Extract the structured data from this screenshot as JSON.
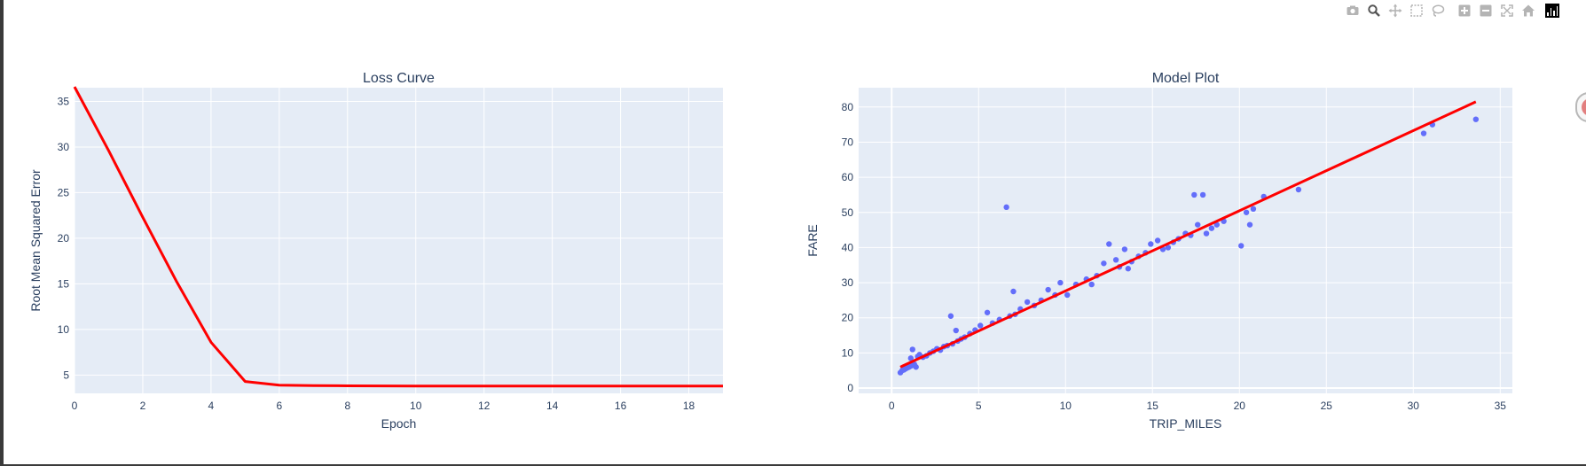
{
  "toolbar": {
    "buttons": [
      "camera-icon",
      "zoom-icon",
      "pan-icon",
      "box-select-icon",
      "lasso-select-icon",
      "zoom-in-icon",
      "zoom-out-icon",
      "autoscale-icon",
      "reset-axes-icon",
      "plotly-logo-icon"
    ]
  },
  "colors": {
    "plot_bg": "#e5ecf6",
    "grid": "#ffffff",
    "text": "#2a3f5f",
    "line": "#ff0000",
    "marker": "#636efa"
  },
  "chart_data": [
    {
      "type": "line",
      "title": "Loss Curve",
      "xlabel": "Epoch",
      "ylabel": "Root Mean Squared Error",
      "xlim": [
        0,
        19
      ],
      "ylim": [
        3,
        36.5
      ],
      "xticks": [
        0,
        2,
        4,
        6,
        8,
        10,
        12,
        14,
        16,
        18
      ],
      "yticks": [
        5,
        10,
        15,
        20,
        25,
        30,
        35
      ],
      "grid": true,
      "series": [
        {
          "x": [
            0,
            1,
            2,
            3,
            4,
            5,
            6,
            7,
            8,
            9,
            10,
            11,
            12,
            13,
            14,
            15,
            16,
            17,
            18,
            19
          ],
          "values": [
            36.6,
            29.6,
            22.3,
            15.2,
            8.6,
            4.3,
            3.9,
            3.85,
            3.83,
            3.82,
            3.81,
            3.8,
            3.8,
            3.8,
            3.8,
            3.8,
            3.8,
            3.8,
            3.8,
            3.8
          ],
          "color": "#ff0000"
        }
      ]
    },
    {
      "type": "scatter",
      "title": "Model Plot",
      "xlabel": "TRIP_MILES",
      "ylabel": "FARE",
      "xlim": [
        -1.9,
        35.7
      ],
      "ylim": [
        -1.5,
        85.5
      ],
      "xticks": [
        0,
        5,
        10,
        15,
        20,
        25,
        30,
        35
      ],
      "yticks": [
        0,
        10,
        20,
        30,
        40,
        50,
        60,
        70,
        80
      ],
      "grid": true,
      "series": [
        {
          "mode": "markers",
          "color": "#636efa",
          "points": [
            [
              0.5,
              4.4
            ],
            [
              0.6,
              5.0
            ],
            [
              0.7,
              5.2
            ],
            [
              0.8,
              5.5
            ],
            [
              0.9,
              5.8
            ],
            [
              1.0,
              6.0
            ],
            [
              1.1,
              6.3
            ],
            [
              1.2,
              6.5
            ],
            [
              1.3,
              6.8
            ],
            [
              1.4,
              6.0
            ],
            [
              1.1,
              8.5
            ],
            [
              1.2,
              11.0
            ],
            [
              1.5,
              9.0
            ],
            [
              1.6,
              9.5
            ],
            [
              1.8,
              8.8
            ],
            [
              2.0,
              9.2
            ],
            [
              2.2,
              10.0
            ],
            [
              2.4,
              10.5
            ],
            [
              2.6,
              11.2
            ],
            [
              2.8,
              10.8
            ],
            [
              3.0,
              11.8
            ],
            [
              3.2,
              12.1
            ],
            [
              3.4,
              20.5
            ],
            [
              3.5,
              12.6
            ],
            [
              3.7,
              16.4
            ],
            [
              3.8,
              13.4
            ],
            [
              4.0,
              14.0
            ],
            [
              4.2,
              14.5
            ],
            [
              4.5,
              15.5
            ],
            [
              4.8,
              16.5
            ],
            [
              5.1,
              17.8
            ],
            [
              5.5,
              21.5
            ],
            [
              5.8,
              18.5
            ],
            [
              6.2,
              19.5
            ],
            [
              6.6,
              51.5
            ],
            [
              6.8,
              20.5
            ],
            [
              7.0,
              27.5
            ],
            [
              7.1,
              21.0
            ],
            [
              7.4,
              22.5
            ],
            [
              7.8,
              24.5
            ],
            [
              8.2,
              23.5
            ],
            [
              8.6,
              25.0
            ],
            [
              9.0,
              28.0
            ],
            [
              9.4,
              26.5
            ],
            [
              9.7,
              30.0
            ],
            [
              10.1,
              26.5
            ],
            [
              10.6,
              29.5
            ],
            [
              11.2,
              31.0
            ],
            [
              11.5,
              29.5
            ],
            [
              11.8,
              32.0
            ],
            [
              12.2,
              35.5
            ],
            [
              12.5,
              41.0
            ],
            [
              12.9,
              36.5
            ],
            [
              13.1,
              34.5
            ],
            [
              13.4,
              39.5
            ],
            [
              13.6,
              34.0
            ],
            [
              13.8,
              36.0
            ],
            [
              14.2,
              37.5
            ],
            [
              14.6,
              38.5
            ],
            [
              14.9,
              41.0
            ],
            [
              15.3,
              42.0
            ],
            [
              15.6,
              39.5
            ],
            [
              15.9,
              40.0
            ],
            [
              16.2,
              41.5
            ],
            [
              16.5,
              42.5
            ],
            [
              16.9,
              44.0
            ],
            [
              17.2,
              43.5
            ],
            [
              17.4,
              55.0
            ],
            [
              17.6,
              46.5
            ],
            [
              17.9,
              55.0
            ],
            [
              18.1,
              44.0
            ],
            [
              18.4,
              45.5
            ],
            [
              18.7,
              46.5
            ],
            [
              19.1,
              47.5
            ],
            [
              20.1,
              40.5
            ],
            [
              20.4,
              50.0
            ],
            [
              20.6,
              46.5
            ],
            [
              20.8,
              51.0
            ],
            [
              21.4,
              54.5
            ],
            [
              23.4,
              56.5
            ],
            [
              30.6,
              72.5
            ],
            [
              31.1,
              75.0
            ],
            [
              33.6,
              76.5
            ]
          ]
        },
        {
          "mode": "lines",
          "color": "#ff0000",
          "x": [
            0.5,
            33.6
          ],
          "values": [
            6.0,
            81.5
          ]
        }
      ]
    }
  ]
}
